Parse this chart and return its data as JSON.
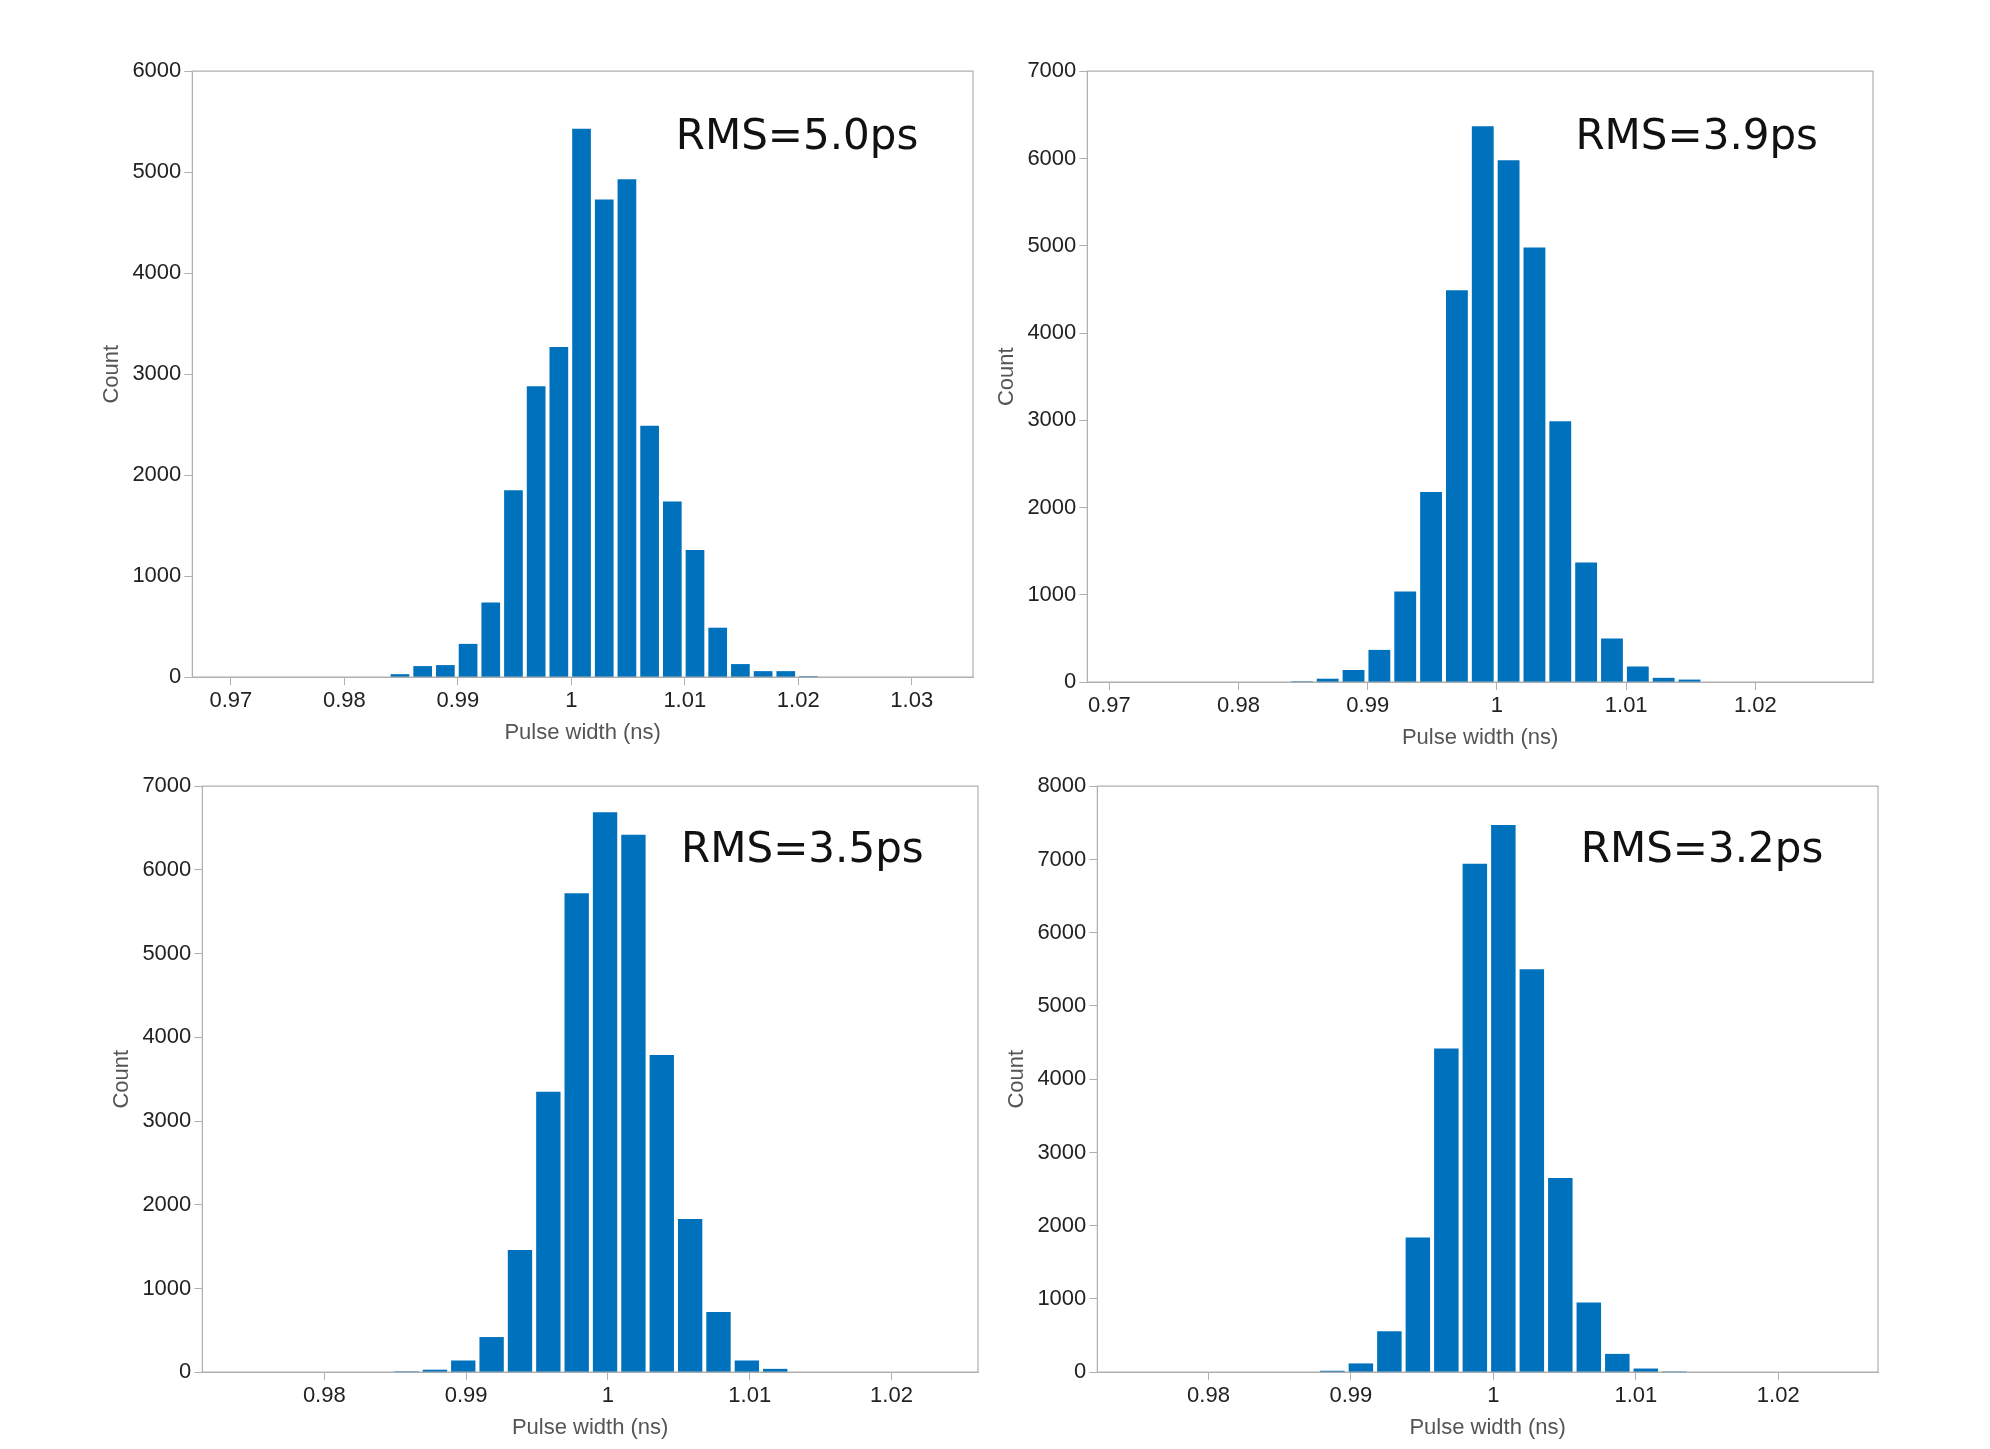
{
  "chart_data": [
    {
      "type": "histogram",
      "xlabel": "Pulse width (ns)",
      "ylabel": "Count",
      "annotations": [
        "RMS=5.0ps"
      ],
      "color": "#0072bd",
      "bins": [
        0.9839,
        0.9859,
        0.9879,
        0.9899,
        0.9919,
        0.9939,
        0.9959,
        0.9979,
        0.9999,
        1.0019,
        1.0039,
        1.0059,
        1.0079,
        1.0099,
        1.0119,
        1.0139,
        1.0159,
        1.0179,
        1.0199,
        1.0219
      ],
      "values": [
        30,
        110,
        120,
        330,
        740,
        1850,
        2880,
        3270,
        5430,
        4730,
        4930,
        2490,
        1740,
        1260,
        490,
        130,
        60,
        60,
        10
      ],
      "xlim": [
        0.9666,
        1.0354
      ],
      "xticks": [
        0.97,
        0.98,
        0.99,
        1,
        1.01,
        1.02,
        1.03
      ],
      "ylim": [
        0,
        6000
      ],
      "yticks": [
        0,
        1000,
        2000,
        3000,
        4000,
        5000,
        6000
      ]
    },
    {
      "type": "histogram",
      "xlabel": "Pulse width (ns)",
      "ylabel": "Count",
      "annotations": [
        "RMS=3.9ps"
      ],
      "color": "#0072bd",
      "bins": [
        0.9839,
        0.9859,
        0.9879,
        0.9899,
        0.9919,
        0.9939,
        0.9959,
        0.9979,
        0.9999,
        1.0019,
        1.0039,
        1.0059,
        1.0079,
        1.0099,
        1.0119,
        1.0139,
        1.0159
      ],
      "values": [
        10,
        40,
        140,
        370,
        1040,
        2180,
        4490,
        6370,
        5980,
        4980,
        2990,
        1370,
        500,
        180,
        50,
        30
      ],
      "xlim": [
        0.9683,
        1.0291
      ],
      "xticks": [
        0.97,
        0.98,
        0.99,
        1,
        1.01,
        1.02
      ],
      "ylim": [
        0,
        7000
      ],
      "yticks": [
        0,
        1000,
        2000,
        3000,
        4000,
        5000,
        6000,
        7000
      ]
    },
    {
      "type": "histogram",
      "xlabel": "Pulse width (ns)",
      "ylabel": "Count",
      "annotations": [
        "RMS=3.5ps"
      ],
      "color": "#0072bd",
      "bins": [
        0.9848,
        0.9868,
        0.9888,
        0.9908,
        0.9928,
        0.9948,
        0.9968,
        0.9988,
        1.0008,
        1.0028,
        1.0048,
        1.0068,
        1.0088,
        1.0108,
        1.0128
      ],
      "values": [
        10,
        30,
        140,
        420,
        1460,
        3350,
        5720,
        6690,
        6420,
        3790,
        1830,
        720,
        140,
        40
      ],
      "xlim": [
        0.9714,
        1.0261
      ],
      "xticks": [
        0.98,
        0.99,
        1,
        1.01,
        1.02
      ],
      "ylim": [
        0,
        7000
      ],
      "yticks": [
        0,
        1000,
        2000,
        3000,
        4000,
        5000,
        6000,
        7000
      ]
    },
    {
      "type": "histogram",
      "xlabel": "Pulse width (ns)",
      "ylabel": "Count",
      "annotations": [
        "RMS=3.2ps"
      ],
      "color": "#0072bd",
      "bins": [
        0.9877,
        0.9897,
        0.9917,
        0.9937,
        0.9957,
        0.9977,
        0.9997,
        1.0017,
        1.0037,
        1.0057,
        1.0077,
        1.0097,
        1.0117,
        1.0137
      ],
      "values": [
        20,
        120,
        560,
        1840,
        4420,
        6940,
        7470,
        5500,
        2650,
        950,
        250,
        50,
        10
      ],
      "xlim": [
        0.9722,
        1.027
      ],
      "xticks": [
        0.98,
        0.99,
        1,
        1.01,
        1.02
      ],
      "ylim": [
        0,
        8000
      ],
      "yticks": [
        0,
        1000,
        2000,
        3000,
        4000,
        5000,
        6000,
        7000,
        8000
      ]
    }
  ]
}
